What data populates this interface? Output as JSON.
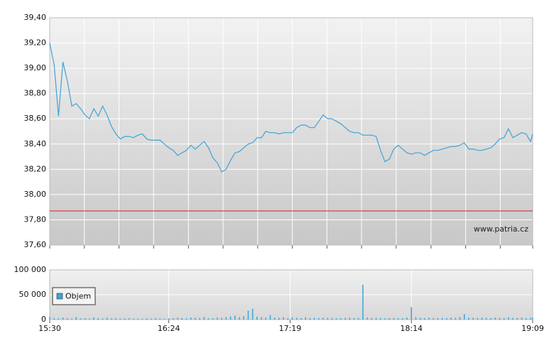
{
  "chart_data": [
    {
      "type": "line",
      "x": [
        930,
        932,
        934,
        936,
        938,
        940,
        942,
        944,
        946,
        948,
        950,
        952,
        954,
        956,
        958,
        960,
        962,
        964,
        966,
        968,
        970,
        972,
        974,
        976,
        978,
        980,
        982,
        984,
        986,
        988,
        990,
        992,
        994,
        996,
        998,
        1000,
        1002,
        1004,
        1006,
        1008,
        1010,
        1012,
        1014,
        1016,
        1018,
        1020,
        1022,
        1024,
        1026,
        1028,
        1030,
        1032,
        1034,
        1036,
        1038,
        1040,
        1042,
        1044,
        1046,
        1048,
        1050,
        1052,
        1054,
        1056,
        1058,
        1060,
        1062,
        1064,
        1066,
        1068,
        1070,
        1072,
        1074,
        1076,
        1078,
        1080,
        1082,
        1084,
        1086,
        1088,
        1090,
        1092,
        1094,
        1096,
        1098,
        1100,
        1102,
        1104,
        1106,
        1108,
        1110,
        1112,
        1114,
        1116,
        1118,
        1120,
        1122,
        1124,
        1126,
        1128,
        1130,
        1132,
        1134,
        1136,
        1138,
        1140,
        1142,
        1144,
        1146,
        1148,
        1149
      ],
      "series": [
        {
          "color": "#3fa3d6",
          "values": [
            39.2,
            39.03,
            38.62,
            39.05,
            38.9,
            38.7,
            38.72,
            38.68,
            38.63,
            38.6,
            38.68,
            38.62,
            38.7,
            38.63,
            38.54,
            38.48,
            38.44,
            38.46,
            38.46,
            38.45,
            38.47,
            38.48,
            38.44,
            38.43,
            38.43,
            38.43,
            38.4,
            38.37,
            38.35,
            38.31,
            38.33,
            38.35,
            38.39,
            38.36,
            38.39,
            38.42,
            38.37,
            38.29,
            38.25,
            38.18,
            38.2,
            38.27,
            38.33,
            38.34,
            38.37,
            38.4,
            38.41,
            38.45,
            38.45,
            38.5,
            38.49,
            38.49,
            38.48,
            38.49,
            38.49,
            38.49,
            38.53,
            38.55,
            38.55,
            38.53,
            38.53,
            38.58,
            38.63,
            38.6,
            38.6,
            38.58,
            38.56,
            38.53,
            38.5,
            38.49,
            38.49,
            38.47,
            38.47,
            38.47,
            38.46,
            38.35,
            38.26,
            38.28,
            38.36,
            38.39,
            38.36,
            38.33,
            38.32,
            38.33,
            38.33,
            38.31,
            38.33,
            38.35,
            38.35,
            38.36,
            38.37,
            38.38,
            38.38,
            38.39,
            38.41,
            38.36,
            38.36,
            38.35,
            38.35,
            38.36,
            38.37,
            38.4,
            38.44,
            38.45,
            38.52,
            38.45,
            38.47,
            38.49,
            38.48,
            38.42,
            38.48
          ]
        }
      ],
      "reference_line": {
        "value": 37.87,
        "color": "#d42020"
      },
      "watermark": "www.patria.cz",
      "xlim": [
        930,
        1149
      ],
      "xticks": [
        930,
        945.7,
        961.4,
        977.1,
        992.9,
        1008.6,
        1024.3,
        1040,
        1055.7,
        1071.4,
        1087.1,
        1102.9,
        1118.6,
        1134.3,
        1149
      ],
      "ylim": [
        37.6,
        39.4
      ],
      "yticks": [
        {
          "value": 37.6,
          "label": "37,60"
        },
        {
          "value": 37.8,
          "label": "37,80"
        },
        {
          "value": 38.0,
          "label": "38,00"
        },
        {
          "value": 38.2,
          "label": "38,20"
        },
        {
          "value": 38.4,
          "label": "38,40"
        },
        {
          "value": 38.6,
          "label": "38,60"
        },
        {
          "value": 38.8,
          "label": "38,80"
        },
        {
          "value": 39.0,
          "label": "39,00"
        },
        {
          "value": 39.2,
          "label": "39,20"
        },
        {
          "value": 39.4,
          "label": "39,40"
        }
      ],
      "grid": true
    },
    {
      "type": "bar",
      "x": [
        930,
        932,
        934,
        936,
        938,
        940,
        942,
        944,
        946,
        948,
        950,
        952,
        954,
        956,
        958,
        960,
        962,
        964,
        966,
        968,
        970,
        972,
        974,
        976,
        978,
        980,
        982,
        984,
        986,
        988,
        990,
        992,
        994,
        996,
        998,
        1000,
        1002,
        1004,
        1006,
        1008,
        1010,
        1012,
        1014,
        1016,
        1018,
        1020,
        1022,
        1024,
        1026,
        1028,
        1030,
        1032,
        1034,
        1036,
        1038,
        1040,
        1042,
        1044,
        1046,
        1048,
        1050,
        1052,
        1054,
        1056,
        1058,
        1060,
        1062,
        1064,
        1066,
        1068,
        1070,
        1072,
        1074,
        1076,
        1078,
        1080,
        1082,
        1084,
        1086,
        1088,
        1090,
        1092,
        1094,
        1096,
        1098,
        1100,
        1102,
        1104,
        1106,
        1108,
        1110,
        1112,
        1114,
        1116,
        1118,
        1120,
        1122,
        1124,
        1126,
        1128,
        1130,
        1132,
        1134,
        1136,
        1138,
        1140,
        1142,
        1144,
        1146,
        1148,
        1149
      ],
      "series": [
        {
          "name": "Objem",
          "color": "#3fa3d6",
          "values": [
            6000,
            3000,
            2500,
            4000,
            3000,
            2000,
            5000,
            2500,
            3000,
            2000,
            4500,
            3000,
            2000,
            3500,
            2500,
            3000,
            2000,
            2500,
            3000,
            2000,
            2000,
            1500,
            2500,
            2000,
            3000,
            2000,
            1500,
            2500,
            3000,
            4000,
            3000,
            2500,
            4000,
            3500,
            3000,
            5000,
            2500,
            3000,
            4000,
            3500,
            5000,
            6000,
            8000,
            5000,
            7000,
            18000,
            22000,
            6000,
            5000,
            4000,
            9000,
            4000,
            3500,
            5000,
            3000,
            4000,
            3500,
            3000,
            4500,
            3000,
            3500,
            3000,
            4000,
            3500,
            3000,
            2500,
            3000,
            3500,
            4000,
            3000,
            3500,
            70000,
            4000,
            3000,
            3500,
            3000,
            2500,
            3000,
            3500,
            3000,
            3000,
            4000,
            25000,
            5000,
            3500,
            3000,
            4000,
            3500,
            3000,
            3500,
            3000,
            4000,
            3500,
            5000,
            11000,
            4000,
            3500,
            3000,
            4000,
            3500,
            3000,
            4000,
            3500,
            3000,
            4500,
            3000,
            3500,
            4000,
            3000,
            3500,
            4000
          ]
        }
      ],
      "xlim": [
        930,
        1149
      ],
      "xticks": [
        {
          "value": 930,
          "label": "15:30"
        },
        {
          "value": 984,
          "label": "16:24"
        },
        {
          "value": 1039,
          "label": "17:19"
        },
        {
          "value": 1094,
          "label": "18:14"
        },
        {
          "value": 1149,
          "label": "19:09"
        }
      ],
      "ylim": [
        0,
        100000
      ],
      "yticks": [
        0,
        {
          "value": 50000,
          "label": "50 000"
        },
        {
          "value": 100000,
          "label": "100 000"
        }
      ],
      "grid": true,
      "legend": "top-left"
    }
  ]
}
